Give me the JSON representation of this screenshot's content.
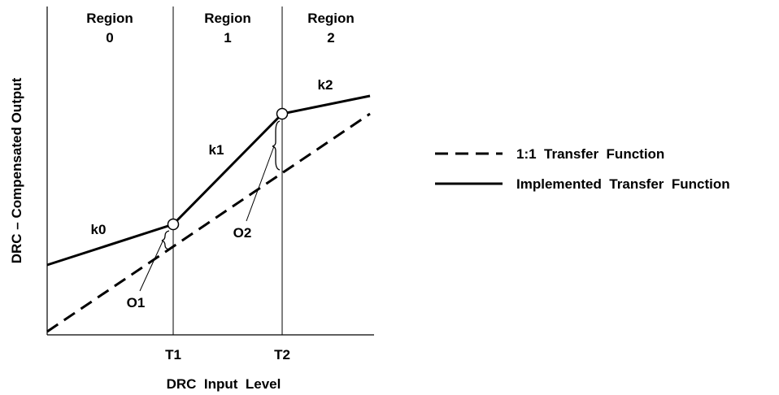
{
  "regions": [
    {
      "name": "Region",
      "index": "0"
    },
    {
      "name": "Region",
      "index": "1"
    },
    {
      "name": "Region",
      "index": "2"
    }
  ],
  "slopes": {
    "k0": "k0",
    "k1": "k1",
    "k2": "k2"
  },
  "offsets": {
    "o1": "O1",
    "o2": "O2"
  },
  "thresholds": {
    "t1": "T1",
    "t2": "T2"
  },
  "axes": {
    "x_label": "DRC  Input  Level",
    "y_label": "DRC – Compensated Output"
  },
  "legend": {
    "dashed": "1:1  Transfer  Function",
    "solid": "Implemented  Transfer  Function"
  },
  "colors": {
    "ink": "#000000",
    "background": "#ffffff"
  }
}
